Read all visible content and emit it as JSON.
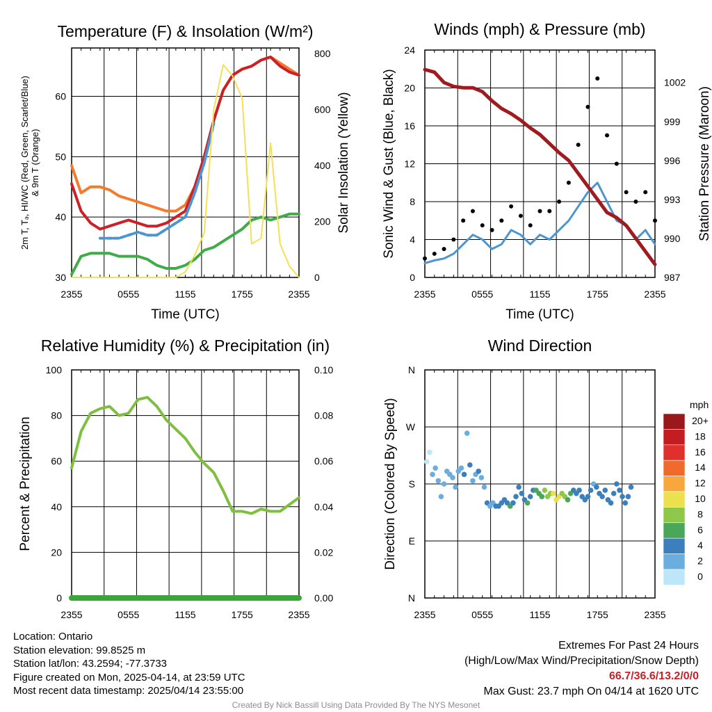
{
  "panels": {
    "temperature": {
      "title": "Temperature (F) & Insolation (W/m²)",
      "y_label_line1": "2m T, Tₔ, HI/WC (Red, Green, Scarlet/Blue)",
      "y_label_line2": "& 9m T (Orange)",
      "y2_label": "Solar Insolation (Yellow)",
      "x_label": "Time (UTC)"
    },
    "winds": {
      "title": "Winds (mph) & Pressure (mb)",
      "y_label": "Sonic Wind & Gust (Blue, Black)",
      "y2_label": "Station Pressure (Maroon)",
      "x_label": "Time (UTC)"
    },
    "humidity": {
      "title": "Relative Humidity (%) & Precipitation (in)",
      "y_label": "Percent & Precipitation"
    },
    "direction": {
      "title": "Wind Direction",
      "y_label": "Direction (Colored By Speed)",
      "colorbar_title": "mph",
      "colorbar_labels": [
        "20+",
        "18",
        "16",
        "14",
        "12",
        "10",
        "8",
        "6",
        "4",
        "2",
        "0"
      ],
      "colorbar_colors": [
        "#98181c",
        "#c31d23",
        "#e0302b",
        "#f06a2c",
        "#f7a73c",
        "#ece04d",
        "#8fc74b",
        "#4aa659",
        "#3c7fbd",
        "#6aaee0",
        "#bde6f8"
      ]
    }
  },
  "info": {
    "location": "Location: Ontario",
    "elevation": "Station elevation: 99.8525 m",
    "latlon": "Station lat/lon: 43.2594; -77.3733",
    "created": "Figure created on Mon, 2025-04-14, at 23:59 UTC",
    "recent": "Most recent data timestamp: 2025/04/14 23:55:00",
    "extremes_title": "Extremes For Past 24 Hours",
    "extremes_subtitle": "(High/Low/Max Wind/Precipitation/Snow Depth)",
    "extremes_values": "66.7/36.6/13.2/0/0",
    "max_gust": "Max Gust: 23.7 mph On 04/14 at 1620 UTC",
    "credit": "Created By Nick Bassill Using Data Provided By The NYS Mesonet"
  },
  "chart_data": [
    {
      "type": "line",
      "title": "Temperature (F) & Insolation (W/m²)",
      "xlabel": "Time (UTC)",
      "x_ticks": [
        "2355",
        "0555",
        "1155",
        "1755",
        "2355"
      ],
      "x": [
        0,
        1,
        2,
        3,
        4,
        5,
        6,
        7,
        8,
        9,
        10,
        11,
        12,
        13,
        14,
        15,
        16,
        17,
        18,
        19,
        20,
        21,
        22,
        23,
        24
      ],
      "ylim": [
        30,
        68
      ],
      "y_ticks": [
        30,
        40,
        50,
        60
      ],
      "y2lim": [
        0,
        820
      ],
      "y2_ticks": [
        0,
        200,
        400,
        600,
        800
      ],
      "series": [
        {
          "color": "#f47a2e",
          "values": [
            48.5,
            44,
            45,
            45,
            44.5,
            43.5,
            43,
            42.5,
            42,
            41.5,
            41,
            41,
            42,
            45,
            50,
            56,
            61,
            63.5,
            64.5,
            65,
            66,
            66.5,
            65.5,
            64.5,
            63.5
          ]
        },
        {
          "color": "#cc2027",
          "values": [
            45.5,
            41,
            39,
            38,
            38.5,
            39,
            39.5,
            39,
            38.5,
            38.5,
            39,
            40,
            41,
            45,
            50,
            56,
            61,
            63.5,
            64.5,
            65,
            66,
            66.5,
            65,
            64,
            63.5
          ]
        },
        {
          "color": "#4d95d0",
          "values": [
            null,
            null,
            null,
            36.5,
            36.5,
            36.5,
            37,
            37.5,
            37,
            37,
            38,
            39,
            40,
            44,
            49,
            55.5,
            null,
            null,
            null,
            null,
            null,
            null,
            null,
            null,
            null
          ]
        },
        {
          "color": "#3fac47",
          "values": [
            30.5,
            33.5,
            34,
            34,
            34,
            33.5,
            33.5,
            33.5,
            33,
            32,
            31.5,
            31.5,
            32,
            33,
            34.5,
            35,
            36,
            37,
            38,
            39.5,
            40,
            39.5,
            40,
            40.5,
            40.5
          ]
        },
        {
          "color": "#f5df55",
          "axis": "y2",
          "values": [
            0,
            0,
            0,
            0,
            0,
            0,
            0,
            0,
            0,
            0,
            0,
            0,
            20,
            80,
            160,
            600,
            760,
            720,
            640,
            120,
            140,
            480,
            120,
            40,
            0
          ]
        }
      ]
    },
    {
      "type": "line",
      "title": "Winds (mph) & Pressure (mb)",
      "xlabel": "Time (UTC)",
      "x_ticks": [
        "2355",
        "0555",
        "1155",
        "1755",
        "2355"
      ],
      "x": [
        0,
        1,
        2,
        3,
        4,
        5,
        6,
        7,
        8,
        9,
        10,
        11,
        12,
        13,
        14,
        15,
        16,
        17,
        18,
        19,
        20,
        21,
        22,
        23,
        24
      ],
      "ylim": [
        0,
        24
      ],
      "y_ticks": [
        0,
        4,
        8,
        12,
        16,
        20,
        24
      ],
      "y2lim": [
        987,
        1004.5
      ],
      "y2_ticks": [
        987,
        990,
        993,
        996,
        999,
        1002
      ],
      "series": [
        {
          "color": "#4d95d0",
          "values": [
            1.5,
            1.8,
            2,
            2.5,
            3.5,
            4.5,
            4,
            3,
            3.5,
            5,
            4.5,
            3.5,
            4.5,
            4,
            5,
            6,
            7.5,
            9,
            10,
            8,
            6,
            5.5,
            4,
            5,
            3.5
          ]
        },
        {
          "color": "#000000",
          "marker": "dot",
          "values": [
            2,
            2.5,
            3,
            4,
            6,
            7,
            5.5,
            5,
            6,
            7.5,
            6.5,
            5.5,
            7,
            7,
            8,
            10,
            14,
            18,
            21,
            15,
            12,
            9,
            8,
            9,
            6
          ]
        },
        {
          "color": "#9e1b20",
          "axis": "y2",
          "values": [
            1003,
            1002.8,
            1002,
            1001.7,
            1001.6,
            1001.6,
            1001.3,
            1000.6,
            1000,
            999.6,
            999.1,
            998.5,
            998,
            997.3,
            996.6,
            996,
            995,
            994,
            993,
            992,
            991.6,
            991,
            990,
            989,
            988
          ]
        }
      ]
    },
    {
      "type": "line",
      "title": "Relative Humidity (%) & Precipitation (in)",
      "x_ticks": [
        "2355",
        "0555",
        "1155",
        "1755",
        "2355"
      ],
      "x": [
        0,
        1,
        2,
        3,
        4,
        5,
        6,
        7,
        8,
        9,
        10,
        11,
        12,
        13,
        14,
        15,
        16,
        17,
        18,
        19,
        20,
        21,
        22,
        23,
        24
      ],
      "ylim": [
        0,
        100
      ],
      "y_ticks": [
        0,
        20,
        40,
        60,
        80,
        100
      ],
      "y2lim": [
        0,
        0.1
      ],
      "y2_ticks": [
        0.0,
        0.02,
        0.04,
        0.06,
        0.08,
        0.1
      ],
      "series": [
        {
          "color": "#7fbf3f",
          "values": [
            57,
            73,
            81,
            83,
            84,
            80,
            81,
            87,
            88,
            84,
            78,
            74,
            70,
            64,
            59,
            55,
            47,
            38,
            38,
            37,
            39,
            38,
            38,
            41,
            44
          ]
        },
        {
          "color": "#3aa63a",
          "axis": "y2",
          "values": [
            0,
            0,
            0,
            0,
            0,
            0,
            0,
            0,
            0,
            0,
            0,
            0,
            0,
            0,
            0,
            0,
            0,
            0,
            0,
            0,
            0,
            0,
            0,
            0,
            0
          ]
        }
      ]
    },
    {
      "type": "scatter",
      "title": "Wind Direction",
      "x_ticks": [
        "2355",
        "0555",
        "1155",
        "1755",
        "2355"
      ],
      "y_ticks": [
        "N",
        "E",
        "S",
        "W",
        "N"
      ],
      "ylim": [
        0,
        360
      ],
      "series": [
        {
          "values": [
            [
              0.2,
              215,
              1.5
            ],
            [
              0.5,
              230,
              1.5
            ],
            [
              0.8,
              195,
              2
            ],
            [
              1.1,
              205,
              2.5
            ],
            [
              1.4,
              185,
              3
            ],
            [
              1.7,
              160,
              3
            ],
            [
              2.0,
              180,
              2.5
            ],
            [
              2.3,
              200,
              3
            ],
            [
              2.6,
              195,
              3.5
            ],
            [
              2.9,
              190,
              3
            ],
            [
              3.2,
              175,
              3
            ],
            [
              3.5,
              200,
              3
            ],
            [
              3.8,
              205,
              3.5
            ],
            [
              4.1,
              195,
              4
            ],
            [
              4.4,
              260,
              2
            ],
            [
              4.7,
              210,
              4
            ],
            [
              5.0,
              185,
              3.5
            ],
            [
              5.3,
              195,
              3.5
            ],
            [
              5.6,
              200,
              4
            ],
            [
              5.9,
              190,
              3
            ],
            [
              6.2,
              175,
              3
            ],
            [
              6.5,
              150,
              4
            ],
            [
              6.8,
              145,
              3.5
            ],
            [
              7.1,
              150,
              3.5
            ],
            [
              7.4,
              145,
              4
            ],
            [
              7.7,
              145,
              4
            ],
            [
              8.0,
              150,
              4
            ],
            [
              8.3,
              155,
              4
            ],
            [
              8.6,
              150,
              4.5
            ],
            [
              8.9,
              145,
              6
            ],
            [
              9.2,
              150,
              5
            ],
            [
              9.5,
              160,
              5
            ],
            [
              9.8,
              175,
              5.5
            ],
            [
              10.1,
              165,
              5
            ],
            [
              10.4,
              155,
              5
            ],
            [
              10.7,
              150,
              6
            ],
            [
              11.0,
              160,
              5
            ],
            [
              11.3,
              170,
              4.5
            ],
            [
              11.6,
              170,
              6
            ],
            [
              11.9,
              165,
              7
            ],
            [
              12.2,
              160,
              7
            ],
            [
              12.5,
              170,
              8
            ],
            [
              12.8,
              160,
              9
            ],
            [
              13.1,
              165,
              9
            ],
            [
              13.4,
              165,
              10
            ],
            [
              13.7,
              155,
              11
            ],
            [
              14.0,
              160,
              10
            ],
            [
              14.3,
              165,
              9
            ],
            [
              14.6,
              160,
              8
            ],
            [
              14.9,
              155,
              7
            ],
            [
              15.2,
              165,
              6
            ],
            [
              15.5,
              170,
              5.5
            ],
            [
              15.8,
              165,
              5
            ],
            [
              16.1,
              170,
              4.5
            ],
            [
              16.4,
              160,
              4
            ],
            [
              16.7,
              155,
              4
            ],
            [
              17.0,
              160,
              4
            ],
            [
              17.3,
              170,
              5
            ],
            [
              17.6,
              180,
              3.5
            ],
            [
              17.9,
              175,
              4
            ],
            [
              18.2,
              165,
              4
            ],
            [
              18.5,
              160,
              4
            ],
            [
              18.8,
              170,
              4.5
            ],
            [
              19.1,
              155,
              4
            ],
            [
              19.4,
              150,
              4
            ],
            [
              19.7,
              165,
              4
            ],
            [
              20.0,
              180,
              4
            ],
            [
              20.3,
              170,
              4
            ],
            [
              20.6,
              160,
              4
            ],
            [
              20.9,
              150,
              4
            ],
            [
              21.2,
              160,
              4
            ],
            [
              21.5,
              175,
              4
            ]
          ]
        }
      ]
    }
  ]
}
